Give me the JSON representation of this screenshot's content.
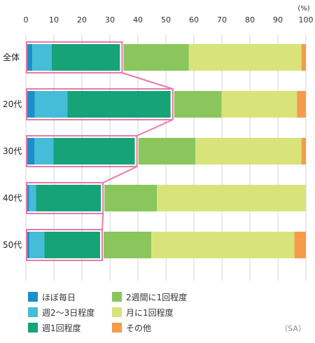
{
  "chart_data": {
    "type": "bar",
    "orientation": "horizontal",
    "stacked": true,
    "unit_label": "(%)",
    "xlim": [
      0,
      100
    ],
    "x_ticks": [
      0,
      10,
      20,
      30,
      40,
      50,
      60,
      70,
      80,
      90,
      100
    ],
    "grid": true,
    "categories": [
      "全体",
      "20代",
      "30代",
      "40代",
      "50代"
    ],
    "series": [
      {
        "name": "ほぼ毎日",
        "color": "#1a8fc9",
        "values": [
          2.3,
          3.2,
          3.1,
          1.2,
          1.3
        ]
      },
      {
        "name": "週2〜3日程度",
        "color": "#45bcd8",
        "values": [
          6.9,
          11.6,
          6.7,
          2.4,
          5.3
        ]
      },
      {
        "name": "週1回程度",
        "color": "#16a378",
        "values": [
          24.4,
          36.9,
          29.1,
          23.2,
          19.9
        ]
      },
      {
        "name": "2週間に1回程度",
        "color": "#8bc65d",
        "values": [
          24.6,
          18.2,
          21.6,
          20.0,
          18.3
        ]
      },
      {
        "name": "月に1回程度",
        "color": "#d8e47a",
        "values": [
          40.2,
          26.9,
          37.9,
          53.2,
          51.1
        ]
      },
      {
        "name": "その他",
        "color": "#f59b4c",
        "values": [
          1.6,
          3.2,
          1.6,
          0.0,
          4.1
        ]
      }
    ],
    "highlight": {
      "color": "#e87aa8",
      "series": [
        "ほぼ毎日",
        "週2〜3日程度",
        "週1回程度"
      ]
    },
    "note": "（SA）",
    "legend_position": "bottom"
  }
}
